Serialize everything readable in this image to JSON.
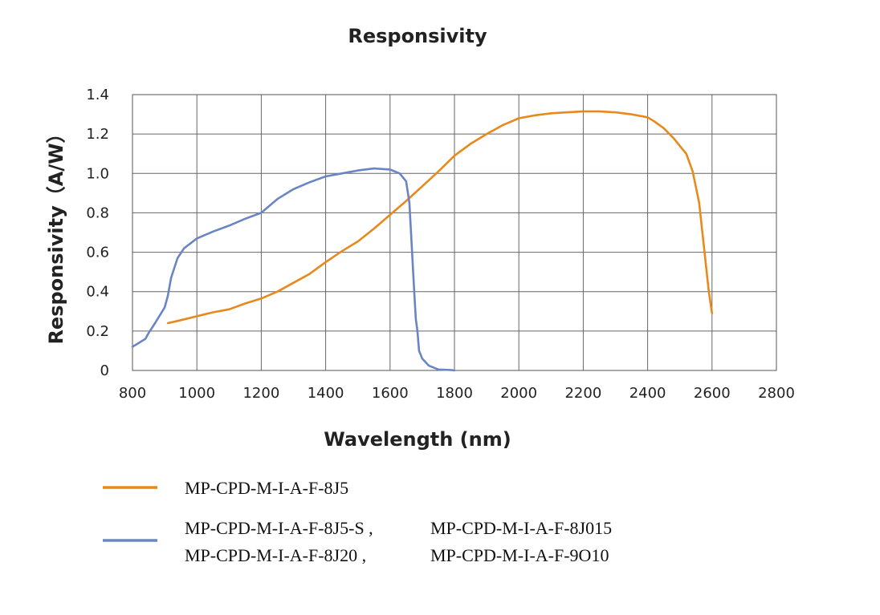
{
  "chart_data": {
    "type": "line",
    "title": "Responsivity",
    "xlabel": "Wavelength (nm)",
    "ylabel": "Responsivity（A/W）",
    "xlim": [
      800,
      2800
    ],
    "ylim": [
      0,
      1.4
    ],
    "x_ticks": [
      800,
      1000,
      1200,
      1400,
      1600,
      1800,
      2000,
      2200,
      2400,
      2600,
      2800
    ],
    "y_ticks": [
      0,
      0.2,
      0.4,
      0.6,
      0.8,
      1.0,
      1.2,
      1.4
    ],
    "y_tick_labels": [
      "0",
      "0.2",
      "0.4",
      "0.6",
      "0.8",
      "1.0",
      "1.2",
      "1.4"
    ],
    "grid": true,
    "series": [
      {
        "name": "MP-CPD-M-I-A-F-8J5",
        "color": "#e8891c",
        "x": [
          910,
          950,
          1000,
          1050,
          1100,
          1150,
          1200,
          1250,
          1300,
          1350,
          1400,
          1450,
          1500,
          1550,
          1600,
          1650,
          1700,
          1750,
          1800,
          1850,
          1900,
          1950,
          2000,
          2050,
          2100,
          2150,
          2200,
          2250,
          2300,
          2350,
          2400,
          2420,
          2450,
          2480,
          2500,
          2520,
          2540,
          2560,
          2570,
          2580,
          2590,
          2600
        ],
        "y": [
          0.24,
          0.255,
          0.275,
          0.295,
          0.31,
          0.34,
          0.365,
          0.4,
          0.445,
          0.49,
          0.55,
          0.605,
          0.655,
          0.72,
          0.79,
          0.86,
          0.935,
          1.01,
          1.09,
          1.15,
          1.2,
          1.245,
          1.28,
          1.295,
          1.305,
          1.31,
          1.315,
          1.315,
          1.31,
          1.3,
          1.285,
          1.265,
          1.23,
          1.18,
          1.14,
          1.1,
          1.01,
          0.85,
          0.7,
          0.55,
          0.4,
          0.29
        ]
      },
      {
        "name": "MP-CPD-M-I-A-F-8J5-S , MP-CPD-M-I-A-F-8J015 / MP-CPD-M-I-A-F-8J20 , MP-CPD-M-I-A-F-9O10",
        "color": "#6a85c4",
        "x": [
          800,
          820,
          840,
          850,
          870,
          900,
          910,
          920,
          940,
          960,
          1000,
          1050,
          1100,
          1150,
          1200,
          1250,
          1300,
          1350,
          1400,
          1450,
          1500,
          1550,
          1600,
          1630,
          1650,
          1660,
          1665,
          1670,
          1675,
          1680,
          1685,
          1690,
          1700,
          1720,
          1750,
          1790,
          1800
        ],
        "y": [
          0.12,
          0.14,
          0.16,
          0.19,
          0.24,
          0.32,
          0.38,
          0.47,
          0.57,
          0.62,
          0.67,
          0.705,
          0.735,
          0.77,
          0.8,
          0.87,
          0.92,
          0.955,
          0.985,
          1.0,
          1.015,
          1.025,
          1.02,
          1.0,
          0.96,
          0.85,
          0.7,
          0.55,
          0.4,
          0.26,
          0.2,
          0.1,
          0.06,
          0.025,
          0.005,
          0.002,
          0.0
        ]
      }
    ],
    "legend": [
      {
        "color": "#e8891c",
        "lines": [
          [
            "MP-CPD-M-I-A-F-8J5"
          ]
        ]
      },
      {
        "color": "#6a85c4",
        "lines": [
          [
            "MP-CPD-M-I-A-F-8J5-S ,",
            "MP-CPD-M-I-A-F-8J015"
          ],
          [
            "MP-CPD-M-I-A-F-8J20 ,",
            "MP-CPD-M-I-A-F-9O10"
          ]
        ]
      }
    ]
  }
}
